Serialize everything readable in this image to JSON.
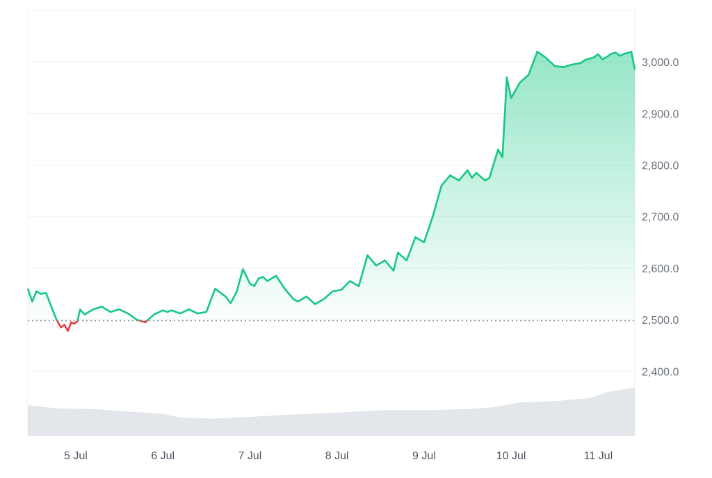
{
  "colors": {
    "up": "#16c784",
    "down": "#ea3943",
    "grid": "#eef0f3",
    "baseline": "#8a8f98",
    "volume": "#e3e6ea",
    "tick_text": "#6b7280"
  },
  "chart_data": {
    "type": "line",
    "title": "",
    "xlabel": "",
    "ylabel": "",
    "baseline_value": 2498,
    "x_ticks": [
      "5 Jul",
      "6 Jul",
      "7 Jul",
      "8 Jul",
      "9 Jul",
      "10 Jul",
      "11 Jul"
    ],
    "y_ticks": [
      "2,400.0",
      "2,500.0",
      "2,600.0",
      "2,700.0",
      "2,800.0",
      "2,900.0",
      "3,000.0"
    ],
    "y_tick_values": [
      2400,
      2500,
      2600,
      2700,
      2800,
      2900,
      3000
    ],
    "ylim": [
      2275,
      3100
    ],
    "xlim_days": [
      4.45,
      11.42
    ],
    "grid": true,
    "series": [
      {
        "x": [
          4.45,
          4.5,
          4.55,
          4.6,
          4.66,
          4.72,
          4.78,
          4.83,
          4.87,
          4.91,
          4.95,
          4.98,
          5.02,
          5.05,
          5.1,
          5.15,
          5.2,
          5.3,
          5.4,
          5.5,
          5.6,
          5.7,
          5.8,
          5.9,
          6.0,
          6.05,
          6.1,
          6.2,
          6.3,
          6.4,
          6.5,
          6.6,
          6.72,
          6.78,
          6.85,
          6.92,
          7.0,
          7.05,
          7.1,
          7.15,
          7.2,
          7.25,
          7.3,
          7.4,
          7.5,
          7.55,
          7.65,
          7.75,
          7.85,
          7.95,
          8.05,
          8.15,
          8.25,
          8.35,
          8.45,
          8.55,
          8.65,
          8.7,
          8.8,
          8.9,
          9.0,
          9.1,
          9.2,
          9.3,
          9.4,
          9.5,
          9.55,
          9.6,
          9.7,
          9.75,
          9.85,
          9.9,
          9.95,
          10.0,
          10.05,
          10.1,
          10.2,
          10.3,
          10.4,
          10.5,
          10.6,
          10.7,
          10.8,
          10.85,
          10.95,
          11.0,
          11.05,
          11.1,
          11.15,
          11.2,
          11.25,
          11.3,
          11.35,
          11.38,
          11.42
        ],
        "values": [
          2560,
          2535,
          2555,
          2550,
          2552,
          2525,
          2500,
          2485,
          2490,
          2478,
          2495,
          2492,
          2497,
          2520,
          2510,
          2515,
          2520,
          2525,
          2515,
          2520,
          2512,
          2500,
          2495,
          2510,
          2518,
          2515,
          2518,
          2512,
          2520,
          2512,
          2515,
          2560,
          2545,
          2532,
          2555,
          2598,
          2570,
          2565,
          2580,
          2583,
          2575,
          2580,
          2585,
          2560,
          2540,
          2535,
          2545,
          2530,
          2540,
          2555,
          2558,
          2575,
          2565,
          2625,
          2605,
          2615,
          2595,
          2630,
          2615,
          2660,
          2650,
          2700,
          2760,
          2780,
          2770,
          2790,
          2775,
          2785,
          2770,
          2775,
          2830,
          2815,
          2970,
          2930,
          2945,
          2960,
          2975,
          3020,
          3008,
          2992,
          2990,
          2995,
          2998,
          3004,
          3009,
          3015,
          3005,
          3010,
          3016,
          3018,
          3012,
          3016,
          3018,
          3020,
          2985
        ],
        "color_above_baseline": "#16c784",
        "color_below_baseline": "#ea3943"
      }
    ],
    "volume": {
      "x": [
        4.45,
        4.8,
        5.2,
        5.6,
        6.0,
        6.2,
        6.6,
        7.0,
        7.5,
        8.0,
        8.5,
        9.0,
        9.5,
        9.8,
        10.1,
        10.5,
        10.9,
        11.1,
        11.42
      ],
      "values": [
        0.5,
        0.45,
        0.44,
        0.4,
        0.36,
        0.3,
        0.28,
        0.31,
        0.35,
        0.38,
        0.42,
        0.42,
        0.44,
        0.47,
        0.55,
        0.57,
        0.62,
        0.72,
        0.8
      ]
    }
  }
}
